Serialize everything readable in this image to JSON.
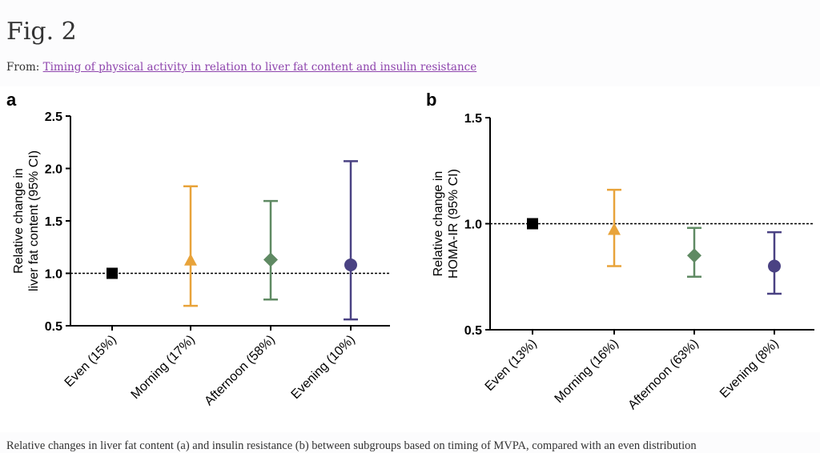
{
  "page": {
    "title": "Fig. 2",
    "from_label": "From:",
    "article_link": "Timing of physical activity in relation to liver fat content and insulin resistance",
    "caption": "Relative changes in liver fat content (a) and insulin resistance (b) between subgroups based on timing of MVPA, compared with an even distribution"
  },
  "chart_data": [
    {
      "type": "scatter",
      "panel": "a",
      "ylabel_lines": [
        "Relative change in",
        "liver  fat content (95% CI)"
      ],
      "ylim": [
        0.5,
        2.5
      ],
      "yticks": [
        "0.5",
        "1.0",
        "1.5",
        "2.0",
        "2.5"
      ],
      "reference_line": 1.0,
      "categories": [
        "Even (15%)",
        "Morning (17%)",
        "Afternoon (58%)",
        "Evening (10%)"
      ],
      "values": [
        1.0,
        1.12,
        1.13,
        1.08
      ],
      "ci_low": [
        null,
        0.69,
        0.75,
        0.56
      ],
      "ci_high": [
        null,
        1.83,
        1.69,
        2.07
      ],
      "markers": [
        "square",
        "triangle",
        "diamond",
        "circle"
      ],
      "colors": [
        "#000000",
        "#e8a33a",
        "#5f8a63",
        "#4a4283"
      ]
    },
    {
      "type": "scatter",
      "panel": "b",
      "ylabel_lines": [
        "Relative change in",
        "HOMA-IR (95% CI)"
      ],
      "ylim": [
        0.5,
        1.5
      ],
      "yticks": [
        "0.5",
        "1.0",
        "1.5"
      ],
      "reference_line": 1.0,
      "categories": [
        "Even (13%)",
        "Morning (16%)",
        "Afternoon (63%)",
        "Evening (8%)"
      ],
      "values": [
        1.0,
        0.97,
        0.85,
        0.8
      ],
      "ci_low": [
        null,
        0.8,
        0.75,
        0.67
      ],
      "ci_high": [
        null,
        1.16,
        0.98,
        0.96
      ],
      "markers": [
        "square",
        "triangle",
        "diamond",
        "circle"
      ],
      "colors": [
        "#000000",
        "#e8a33a",
        "#5f8a63",
        "#4a4283"
      ]
    }
  ]
}
